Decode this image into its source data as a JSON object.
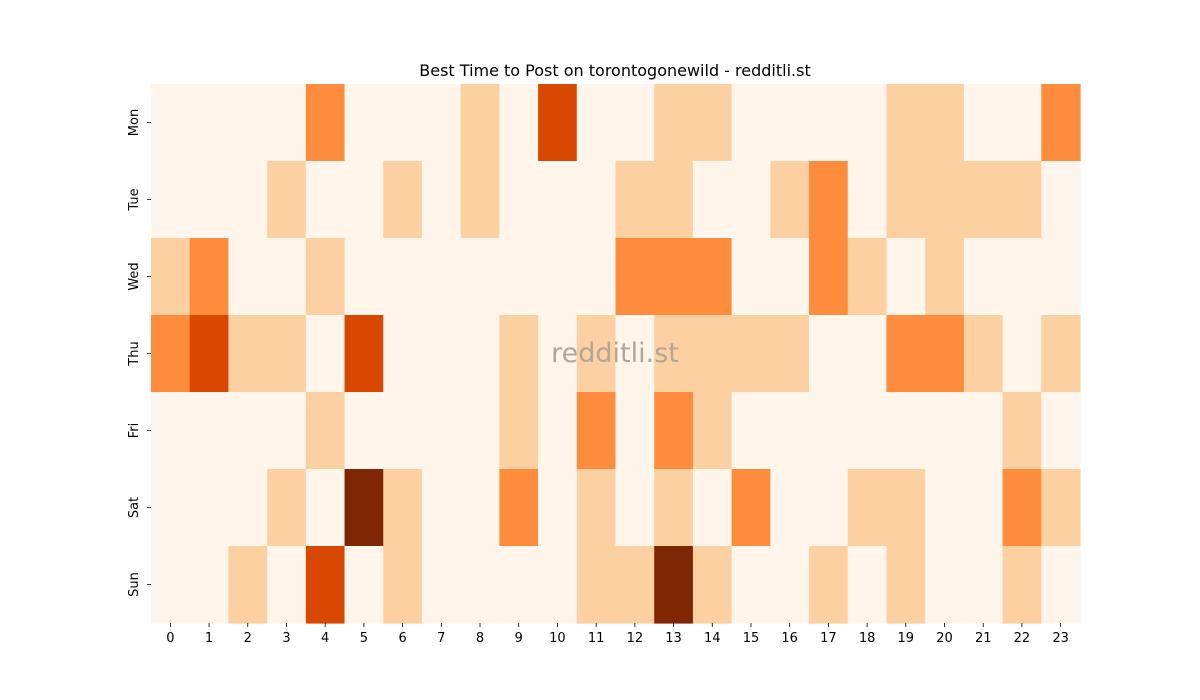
{
  "chart_data": {
    "type": "heatmap",
    "title": "Best Time to Post on torontogonewild - redditli.st",
    "watermark": "redditli.st",
    "x": [
      "0",
      "1",
      "2",
      "3",
      "4",
      "5",
      "6",
      "7",
      "8",
      "9",
      "10",
      "11",
      "12",
      "13",
      "14",
      "15",
      "16",
      "17",
      "18",
      "19",
      "20",
      "21",
      "22",
      "23"
    ],
    "y": [
      "Mon",
      "Tue",
      "Wed",
      "Thu",
      "Fri",
      "Sat",
      "Sun"
    ],
    "values": [
      [
        0,
        0,
        0,
        0,
        2,
        0,
        0,
        0,
        1,
        0,
        3,
        0,
        0,
        1,
        1,
        0,
        0,
        0,
        0,
        1,
        1,
        0,
        0,
        2
      ],
      [
        0,
        0,
        0,
        1,
        0,
        0,
        1,
        0,
        1,
        0,
        0,
        0,
        1,
        1,
        0,
        0,
        1,
        2,
        0,
        1,
        1,
        1,
        1,
        0
      ],
      [
        1,
        2,
        0,
        0,
        1,
        0,
        0,
        0,
        0,
        0,
        0,
        0,
        2,
        2,
        2,
        0,
        0,
        2,
        1,
        0,
        1,
        0,
        0,
        0
      ],
      [
        2,
        3,
        1,
        1,
        0,
        3,
        0,
        0,
        0,
        1,
        0,
        1,
        0,
        1,
        1,
        1,
        1,
        0,
        0,
        2,
        2,
        1,
        0,
        1
      ],
      [
        0,
        0,
        0,
        0,
        1,
        0,
        0,
        0,
        0,
        1,
        0,
        2,
        0,
        2,
        1,
        0,
        0,
        0,
        0,
        0,
        0,
        0,
        1,
        0
      ],
      [
        0,
        0,
        0,
        1,
        0,
        4,
        1,
        0,
        0,
        2,
        0,
        1,
        0,
        1,
        0,
        2,
        0,
        0,
        1,
        1,
        0,
        0,
        2,
        1
      ],
      [
        0,
        0,
        1,
        0,
        3,
        0,
        1,
        0,
        0,
        0,
        0,
        1,
        1,
        4,
        1,
        0,
        0,
        1,
        0,
        1,
        0,
        0,
        1,
        0
      ]
    ],
    "vmin": 0,
    "vmax": 4,
    "colorscale": [
      "#fff5eb",
      "#fdd0a2",
      "#fd8d3c",
      "#d94801",
      "#7f2704"
    ]
  }
}
